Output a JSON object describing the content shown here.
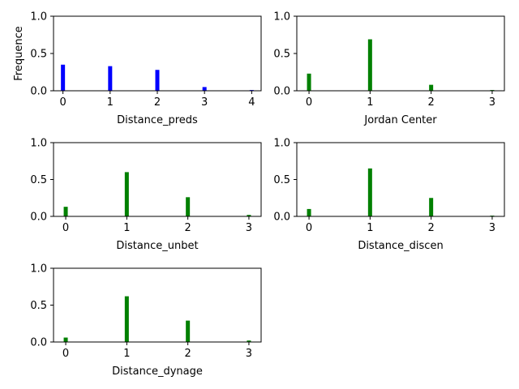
{
  "chart_data": [
    {
      "type": "bar",
      "x": [
        0,
        1,
        2,
        3,
        4
      ],
      "values": [
        0.35,
        0.33,
        0.28,
        0.05,
        0.01
      ],
      "xlabel": "Distance_preds",
      "ylabel": "Frequence",
      "xticks": [
        "0",
        "1",
        "2",
        "3",
        "4"
      ],
      "yticks": [
        "0.0",
        "0.5",
        "1.0"
      ],
      "xlim": [
        -0.2,
        4.2
      ],
      "ylim": [
        0,
        1
      ],
      "color": "#0000ff"
    },
    {
      "type": "bar",
      "x": [
        0,
        1,
        2,
        3
      ],
      "values": [
        0.23,
        0.69,
        0.08,
        0.01
      ],
      "xlabel": "Jordan Center",
      "ylabel": "",
      "xticks": [
        "0",
        "1",
        "2",
        "3"
      ],
      "yticks": [
        "0.0",
        "0.5",
        "1.0"
      ],
      "xlim": [
        -0.2,
        3.2
      ],
      "ylim": [
        0,
        1
      ],
      "color": "#008000"
    },
    {
      "type": "bar",
      "x": [
        0,
        1,
        2,
        3
      ],
      "values": [
        0.13,
        0.6,
        0.26,
        0.02
      ],
      "xlabel": "Distance_unbet",
      "ylabel": "",
      "xticks": [
        "0",
        "1",
        "2",
        "3"
      ],
      "yticks": [
        "0.0",
        "0.5",
        "1.0"
      ],
      "xlim": [
        -0.2,
        3.2
      ],
      "ylim": [
        0,
        1
      ],
      "color": "#008000"
    },
    {
      "type": "bar",
      "x": [
        0,
        1,
        2,
        3
      ],
      "values": [
        0.1,
        0.65,
        0.25,
        0.01
      ],
      "xlabel": "Distance_discen",
      "ylabel": "",
      "xticks": [
        "0",
        "1",
        "2",
        "3"
      ],
      "yticks": [
        "0.0",
        "0.5",
        "1.0"
      ],
      "xlim": [
        -0.2,
        3.2
      ],
      "ylim": [
        0,
        1
      ],
      "color": "#008000"
    },
    {
      "type": "bar",
      "x": [
        0,
        1,
        2,
        3
      ],
      "values": [
        0.06,
        0.62,
        0.29,
        0.02
      ],
      "xlabel": "Distance_dynage",
      "ylabel": "",
      "xticks": [
        "0",
        "1",
        "2",
        "3"
      ],
      "yticks": [
        "0.0",
        "0.5",
        "1.0"
      ],
      "xlim": [
        -0.2,
        3.2
      ],
      "ylim": [
        0,
        1
      ],
      "color": "#008000"
    }
  ]
}
